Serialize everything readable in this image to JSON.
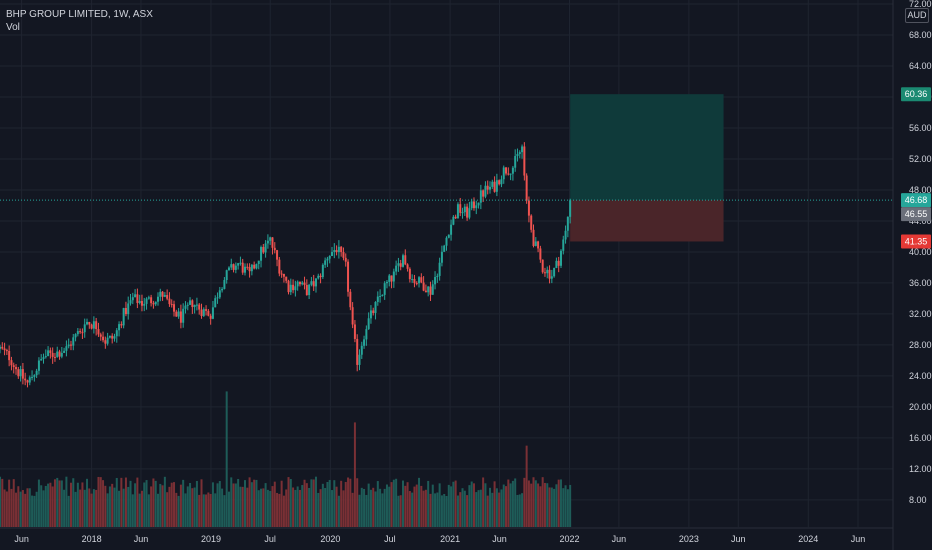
{
  "legend": {
    "title": "BHP GROUP LIMITED, 1W, ASX",
    "volume_label": "Vol"
  },
  "currency": "AUD",
  "colors": {
    "background": "#131722",
    "grid": "#1f2430",
    "up": "#26a69a",
    "down": "#ef5350",
    "target_zone": "#0f3a3a",
    "stop_zone": "#4a2529",
    "target_badge": "#1b8a72",
    "stop_badge": "#e53935",
    "last_badge": "#26a69a",
    "prev_badge": "#6b6f7a"
  },
  "chart_data": {
    "type": "candlestick",
    "symbol": "BHP GROUP LIMITED",
    "interval": "1W",
    "exchange": "ASX",
    "yaxis_ticks": [
      8.0,
      12.0,
      16.0,
      20.0,
      24.0,
      28.0,
      32.0,
      36.0,
      40.0,
      44.0,
      48.0,
      52.0,
      56.0,
      60.0,
      64.0,
      68.0,
      72.0
    ],
    "yaxis_labels": [
      "8.00",
      "12.00",
      "16.00",
      "20.00",
      "24.00",
      "28.00",
      "32.00",
      "36.00",
      "40.00",
      "44.00",
      "48.00",
      "52.00",
      "56.00",
      "60.00",
      "64.00",
      "68.00",
      "72.00"
    ],
    "ylim": [
      4.5,
      72
    ],
    "xaxis_labels": [
      "Jun",
      "2018",
      "Jun",
      "2019",
      "Jul",
      "2020",
      "Jul",
      "2021",
      "Jun",
      "2022",
      "Jun",
      "2023",
      "Jun",
      "2024",
      "Jun"
    ],
    "xlim": [
      "2017-03-27",
      "2024-09-16"
    ],
    "price_badges": {
      "target": "60.36",
      "last": "46.68",
      "previous": "46.55",
      "stop": "41.35"
    },
    "position": {
      "entry": 46.68,
      "target": 60.36,
      "stop": 41.35,
      "start": "2022-01-03",
      "end": "2023-04-17"
    },
    "close_path": [
      [
        "2017-03-27",
        27.5
      ],
      [
        "2017-04-24",
        26.5
      ],
      [
        "2017-05-22",
        24.5
      ],
      [
        "2017-06-19",
        23.0
      ],
      [
        "2017-07-10",
        24.5
      ],
      [
        "2017-08-07",
        26.5
      ],
      [
        "2017-09-04",
        26.8
      ],
      [
        "2017-10-16",
        27.5
      ],
      [
        "2017-11-20",
        29.5
      ],
      [
        "2017-12-18",
        31.0
      ],
      [
        "2018-01-15",
        30.5
      ],
      [
        "2018-02-12",
        28.5
      ],
      [
        "2018-03-12",
        29.0
      ],
      [
        "2018-04-09",
        32.0
      ],
      [
        "2018-05-07",
        34.0
      ],
      [
        "2018-06-04",
        33.5
      ],
      [
        "2018-07-02",
        33.8
      ],
      [
        "2018-08-06",
        34.5
      ],
      [
        "2018-09-03",
        32.5
      ],
      [
        "2018-10-01",
        31.5
      ],
      [
        "2018-11-05",
        33.5
      ],
      [
        "2018-12-03",
        32.5
      ],
      [
        "2018-12-31",
        32.0
      ],
      [
        "2019-01-28",
        35.5
      ],
      [
        "2019-02-25",
        37.5
      ],
      [
        "2019-03-25",
        38.5
      ],
      [
        "2019-04-29",
        37.0
      ],
      [
        "2019-06-03",
        40.0
      ],
      [
        "2019-07-01",
        41.5
      ],
      [
        "2019-07-29",
        38.0
      ],
      [
        "2019-08-26",
        35.5
      ],
      [
        "2019-09-23",
        36.0
      ],
      [
        "2019-10-21",
        35.0
      ],
      [
        "2019-11-25",
        36.5
      ],
      [
        "2019-12-23",
        39.5
      ],
      [
        "2020-01-20",
        40.5
      ],
      [
        "2020-02-17",
        38.0
      ],
      [
        "2020-03-09",
        30.0
      ],
      [
        "2020-03-23",
        26.0
      ],
      [
        "2020-04-20",
        30.5
      ],
      [
        "2020-05-18",
        33.0
      ],
      [
        "2020-06-15",
        35.5
      ],
      [
        "2020-07-13",
        37.0
      ],
      [
        "2020-08-10",
        39.5
      ],
      [
        "2020-09-07",
        36.5
      ],
      [
        "2020-10-05",
        36.0
      ],
      [
        "2020-11-02",
        35.0
      ],
      [
        "2020-11-30",
        38.5
      ],
      [
        "2020-12-28",
        43.0
      ],
      [
        "2021-01-25",
        45.5
      ],
      [
        "2021-02-22",
        45.0
      ],
      [
        "2021-03-22",
        46.5
      ],
      [
        "2021-04-19",
        48.0
      ],
      [
        "2021-05-17",
        48.5
      ],
      [
        "2021-06-14",
        50.5
      ],
      [
        "2021-07-12",
        51.0
      ],
      [
        "2021-08-09",
        53.5
      ],
      [
        "2021-08-23",
        46.0
      ],
      [
        "2021-09-13",
        41.5
      ],
      [
        "2021-10-11",
        38.0
      ],
      [
        "2021-11-08",
        37.0
      ],
      [
        "2021-11-29",
        39.0
      ],
      [
        "2021-12-20",
        42.5
      ],
      [
        "2022-01-03",
        46.68
      ]
    ],
    "volume_spikes": [
      [
        "2019-02-18",
        22.0
      ],
      [
        "2020-03-16",
        18.0
      ],
      [
        "2021-08-23",
        15.0
      ]
    ]
  }
}
